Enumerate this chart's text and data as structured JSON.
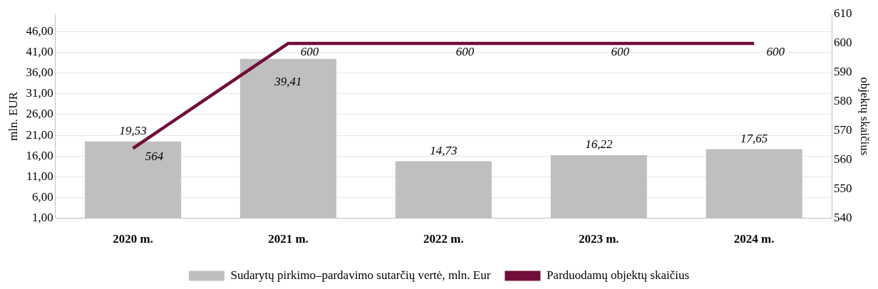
{
  "chart_data": {
    "type": "bar",
    "categories": [
      "2020 m.",
      "2021 m.",
      "2022 m.",
      "2023 m.",
      "2024 m."
    ],
    "series": [
      {
        "name": "Sudarytų pirkimo–pardavimo sutarčių vertė, mln. Eur",
        "color": "#bfbfbf",
        "values": [
          19.53,
          39.41,
          14.73,
          16.22,
          17.65
        ],
        "value_labels": [
          "19,53",
          "39,41",
          "14,73",
          "16,22",
          "17,65"
        ]
      },
      {
        "name": "Parduodamų objektų skaičius",
        "type": "line",
        "axis": "y2",
        "color": "#720d3a",
        "values": [
          564,
          600,
          600,
          600,
          600
        ],
        "value_labels": [
          "564",
          "600",
          "600",
          "600",
          "600"
        ]
      }
    ],
    "ylabel": "mln. EUR",
    "y2label": "objektų skaičius",
    "ylim": [
      1,
      50.2
    ],
    "yticks": [
      {
        "value": 1,
        "label": "1,00"
      },
      {
        "value": 6,
        "label": "6,00"
      },
      {
        "value": 11,
        "label": "11,00"
      },
      {
        "value": 16,
        "label": "16,00"
      },
      {
        "value": 21,
        "label": "21,00"
      },
      {
        "value": 26,
        "label": "26,00"
      },
      {
        "value": 31,
        "label": "31,00"
      },
      {
        "value": 36,
        "label": "36,00"
      },
      {
        "value": 41,
        "label": "41,00"
      },
      {
        "value": 46,
        "label": "46,00"
      }
    ],
    "y2lim": [
      540,
      610
    ],
    "y2ticks": [
      540,
      550,
      560,
      570,
      580,
      590,
      600,
      610
    ],
    "grid": "y",
    "legend": "bottom",
    "marker": "none",
    "line_style": "solid"
  }
}
